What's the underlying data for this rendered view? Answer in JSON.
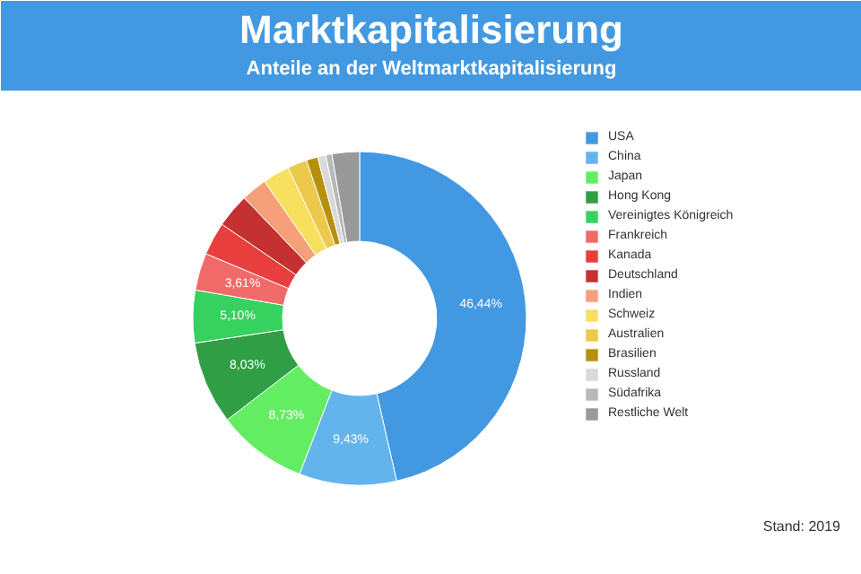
{
  "chart_data": {
    "type": "donut",
    "title": "Marktkapitalisierung",
    "subtitle": "Anteile an der Weltmarktkapitalisierung",
    "categories": [
      "USA",
      "China",
      "Japan",
      "Hong Kong",
      "Vereinigtes Königreich",
      "Frankreich",
      "Kanada",
      "Deutschland",
      "Indien",
      "Schweiz",
      "Australien",
      "Brasilien",
      "Russland",
      "Südafrika",
      "Restliche Welt"
    ],
    "values": [
      46.44,
      9.43,
      8.73,
      8.03,
      5.1,
      3.61,
      3.2,
      3.3,
      2.5,
      2.6,
      1.9,
      1.1,
      0.8,
      0.6,
      2.66
    ],
    "value_labels": [
      "46,44%",
      "9,43%",
      "8,73%",
      "8,03%",
      "5,10%",
      "3,61%",
      null,
      null,
      null,
      null,
      null,
      null,
      null,
      null,
      null
    ],
    "colors": [
      "#4299e1",
      "#63b3ed",
      "#63ed63",
      "#2f9e44",
      "#37d160",
      "#f06a6a",
      "#e83e3e",
      "#c53030",
      "#f6a07a",
      "#f6e05e",
      "#ecc94b",
      "#b7900b",
      "#d9d9d9",
      "#b8b8b8",
      "#999999"
    ],
    "legend": "right",
    "annotations": [
      "Stand: 2019"
    ]
  }
}
